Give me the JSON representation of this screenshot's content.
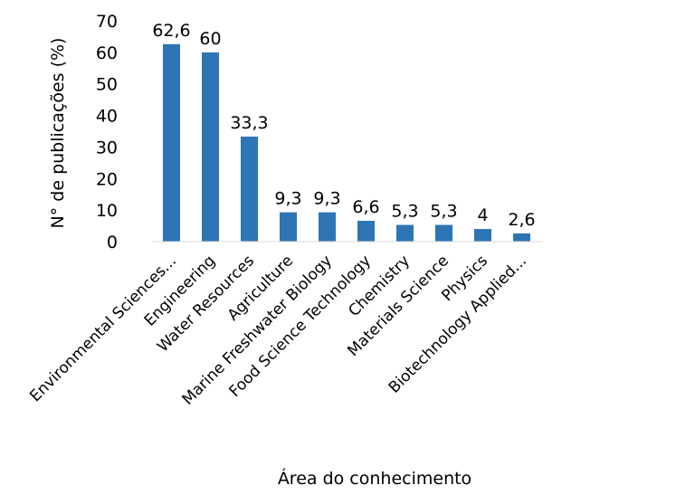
{
  "chart_data": {
    "type": "bar",
    "title": "",
    "xlabel": "Área do conhecimento",
    "ylabel": "N° de publicações (%)",
    "ylim": [
      0,
      70
    ],
    "yticks": [
      "0",
      "10",
      "20",
      "30",
      "40",
      "50",
      "60",
      "70"
    ],
    "grid": false,
    "legend": "none",
    "bar_color": "#2e75b6",
    "categories": [
      "Environmental Sciences...",
      "Engineering",
      "Water Resources",
      "Agriculture",
      "Marine Freshwater Biology",
      "Food Science Technology",
      "Chemistry",
      "Materials Science",
      "Physics",
      "Biotechnology Applied..."
    ],
    "values": [
      62.6,
      60,
      33.3,
      9.3,
      9.3,
      6.6,
      5.3,
      5.3,
      4,
      2.6
    ],
    "value_labels": [
      "62,6",
      "60",
      "33,3",
      "9,3",
      "9,3",
      "6,6",
      "5,3",
      "5,3",
      "4",
      "2,6"
    ]
  }
}
